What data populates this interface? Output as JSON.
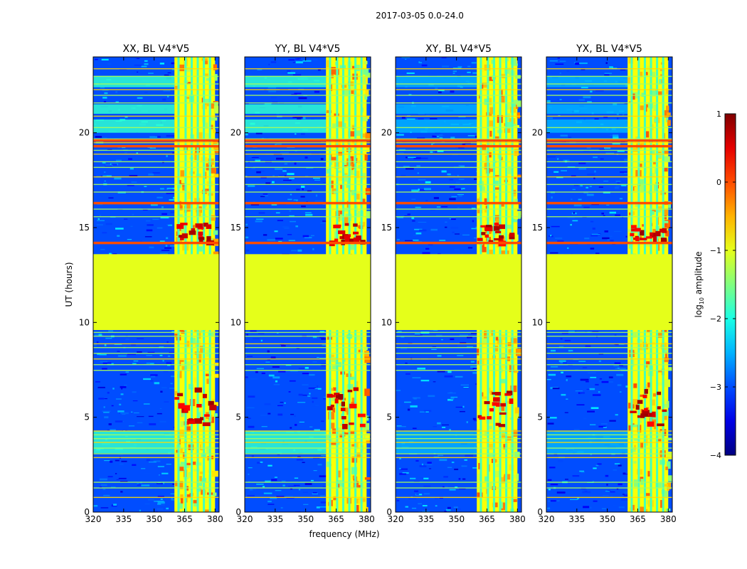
{
  "chart_data": {
    "type": "heatmap",
    "title": "2017-03-05 0.0-24.0",
    "xlabel": "frequency (MHz)",
    "ylabel": "UT (hours)",
    "xlim": [
      320,
      382
    ],
    "ylim": [
      0,
      24
    ],
    "xticks": [
      "320",
      "335",
      "350",
      "365",
      "380"
    ],
    "yticks": [
      "0",
      "5",
      "10",
      "15",
      "20"
    ],
    "colorscale": "jet",
    "colorbar": {
      "label_prefix": "log",
      "label_sub": "10",
      "label_suffix": " amplitude",
      "range": [
        -4,
        1
      ],
      "ticks": [
        "1",
        "0",
        "−1",
        "−2",
        "−3",
        "−4"
      ]
    },
    "panels": [
      {
        "name": "XX",
        "title": "XX, BL V4*V5"
      },
      {
        "name": "YY",
        "title": "YY, BL V4*V5"
      },
      {
        "name": "XY",
        "title": "XY, BL V4*V5"
      },
      {
        "name": "YX",
        "title": "YX, BL V4*V5"
      }
    ],
    "rfi_band_mhz": [
      360,
      380
    ],
    "flagged_gap_hours": [
      9.6,
      13.6
    ],
    "strong_rfi_hours": [
      [
        4.6,
        6.6
      ],
      [
        14.3,
        15.3
      ]
    ],
    "background_log_amplitude": -3,
    "gap_log_amplitude": -1
  }
}
